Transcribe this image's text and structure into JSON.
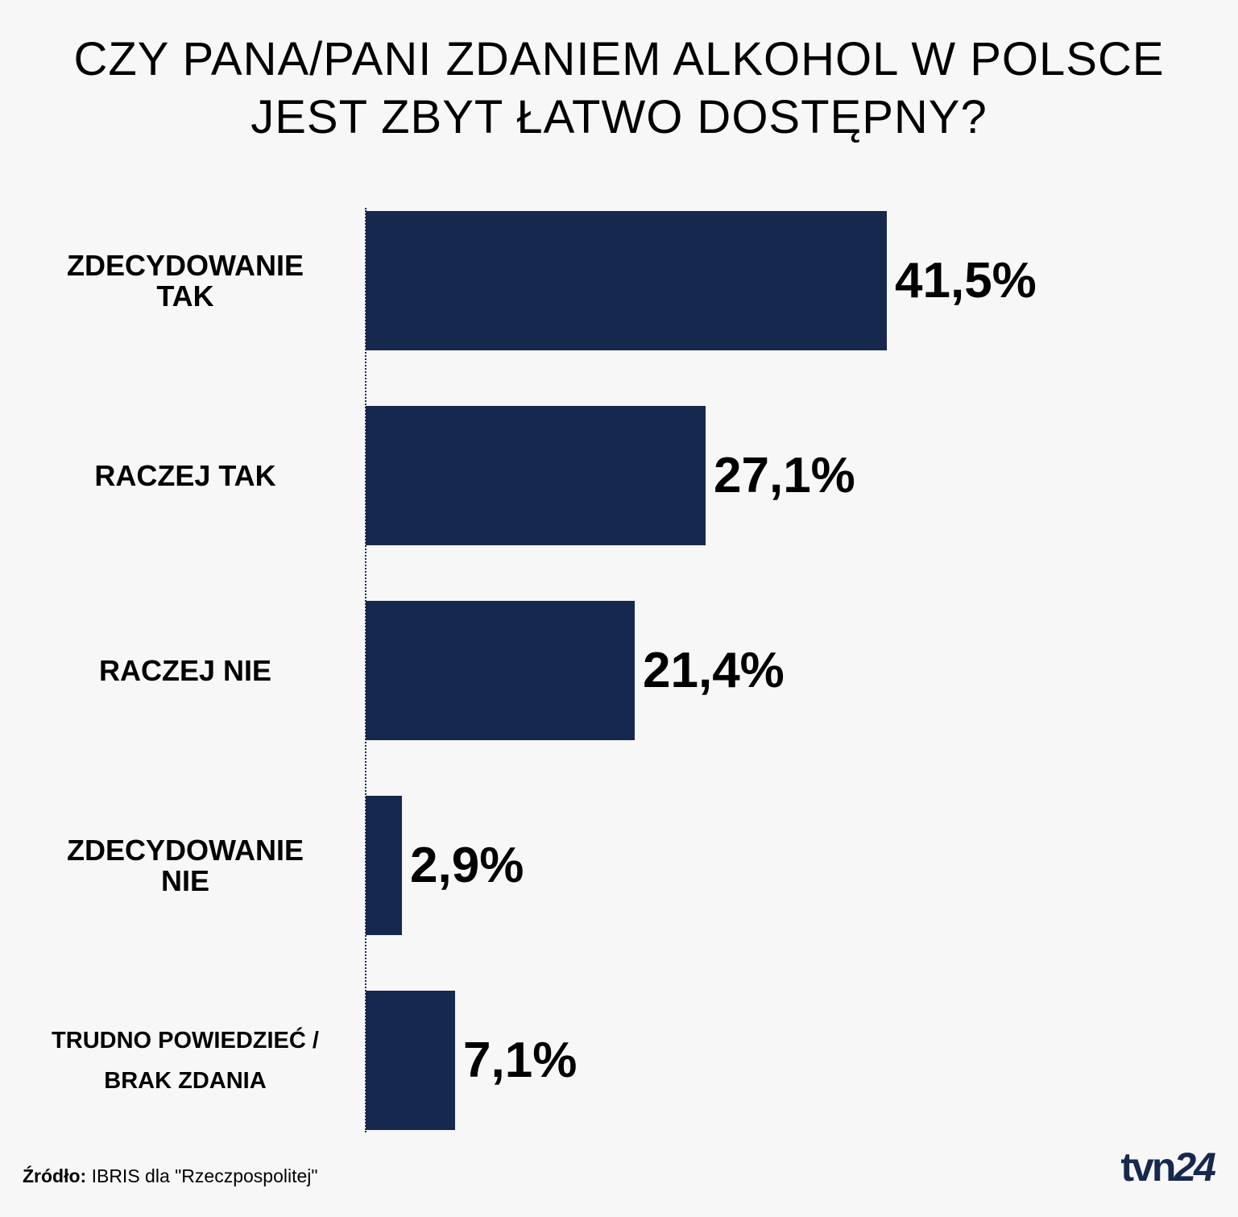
{
  "title": {
    "line1": "CZY PANA/PANI ZDANIEM ALKOHOL W POLSCE",
    "line2": "JEST ZBYT ŁATWO DOSTĘPNY?"
  },
  "chart_data": {
    "type": "bar",
    "orientation": "horizontal",
    "title": "CZY PANA/PANI ZDANIEM ALKOHOL W POLSCE JEST ZBYT ŁATWO DOSTĘPNY?",
    "categories": [
      "ZDECYDOWANIE TAK",
      "RACZEJ TAK",
      "RACZEJ NIE",
      "ZDECYDOWANIE NIE",
      "TRUDNO POWIEDZIEĆ / BRAK ZDANIA"
    ],
    "category_lines": [
      [
        "ZDECYDOWANIE",
        "TAK"
      ],
      [
        "RACZEJ TAK"
      ],
      [
        "RACZEJ NIE"
      ],
      [
        "ZDECYDOWANIE",
        "NIE"
      ],
      [
        "TRUDNO POWIEDZIEĆ /",
        "BRAK ZDANIA"
      ]
    ],
    "values": [
      41.5,
      27.1,
      21.4,
      2.9,
      7.1
    ],
    "value_labels": [
      "41,5%",
      "27,1%",
      "21,4%",
      "2,9%",
      "7,1%"
    ],
    "unit": "%",
    "bar_color": "#17284e",
    "grid": false,
    "legend": "none"
  },
  "footer": {
    "source_prefix": "Źródło:",
    "source_text": " IBRIS dla \"Rzeczpospolitej\"",
    "logo_tvn": "tvn",
    "logo_24": "24"
  }
}
